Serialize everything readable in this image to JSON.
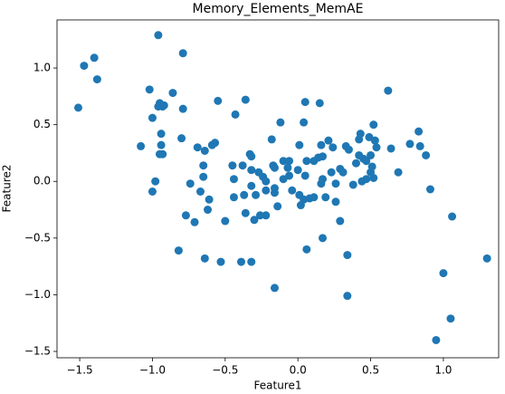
{
  "chart_data": {
    "type": "scatter",
    "title": "Memory_Elements_MemAE",
    "x_label": "Feature1",
    "y_label": "Feature2",
    "color": "#1f77b4",
    "x": [
      -1.51,
      -1.47,
      -1.4,
      -1.38,
      -0.96,
      -0.79,
      -1.08,
      -1.02,
      -1.0,
      -0.95,
      -0.93,
      -0.92,
      -0.96,
      -0.86,
      -0.79,
      -0.94,
      -0.94,
      -0.95,
      -0.93,
      -0.8,
      -0.98,
      -1.0,
      -0.74,
      -0.77,
      -0.71,
      -0.67,
      -0.69,
      -0.65,
      -0.65,
      -0.64,
      -0.61,
      -0.62,
      -0.59,
      -0.57,
      -0.55,
      -0.5,
      -0.82,
      -0.64,
      -0.53,
      -0.39,
      -0.32,
      -0.43,
      -0.36,
      -0.45,
      -0.44,
      -0.44,
      -0.38,
      -0.37,
      -0.36,
      -0.33,
      -0.32,
      -0.32,
      -0.32,
      -0.29,
      -0.3,
      -0.26,
      -0.24,
      -0.27,
      -0.22,
      -0.22,
      -0.22,
      -0.18,
      -0.17,
      -0.16,
      -0.16,
      -0.16,
      -0.14,
      -0.12,
      -0.1,
      -0.07,
      -0.1,
      -0.06,
      -0.06,
      -0.04,
      -0.16,
      0.01,
      0.0,
      0.01,
      0.02,
      0.04,
      0.05,
      0.04,
      0.06,
      0.06,
      0.05,
      0.08,
      0.11,
      0.11,
      0.15,
      0.14,
      0.16,
      0.17,
      0.17,
      0.16,
      0.19,
      0.17,
      0.21,
      0.23,
      0.24,
      0.26,
      0.26,
      0.29,
      0.29,
      0.31,
      0.33,
      0.35,
      0.34,
      0.34,
      0.38,
      0.4,
      0.42,
      0.43,
      0.42,
      0.44,
      0.45,
      0.47,
      0.47,
      0.49,
      0.5,
      0.5,
      0.51,
      0.52,
      0.53,
      0.54,
      0.52,
      0.62,
      0.64,
      0.69,
      0.77,
      0.83,
      0.84,
      0.88,
      0.91,
      1.06,
      1.0,
      1.05,
      0.95,
      1.3
    ],
    "y": [
      0.65,
      1.02,
      1.09,
      0.9,
      1.29,
      1.13,
      0.31,
      0.81,
      0.56,
      0.69,
      0.66,
      0.67,
      0.66,
      0.78,
      0.64,
      0.42,
      0.32,
      0.24,
      0.24,
      0.38,
      0.0,
      -0.09,
      -0.02,
      -0.3,
      -0.36,
      -0.09,
      0.3,
      0.14,
      0.04,
      0.27,
      -0.16,
      -0.25,
      0.32,
      0.34,
      0.71,
      -0.35,
      -0.61,
      -0.68,
      -0.71,
      -0.71,
      -0.71,
      0.59,
      0.72,
      0.14,
      0.02,
      -0.14,
      0.14,
      -0.12,
      -0.28,
      0.24,
      0.22,
      0.1,
      -0.04,
      -0.12,
      -0.34,
      -0.3,
      0.04,
      0.08,
      -0.08,
      -0.3,
      0.0,
      0.37,
      0.14,
      0.12,
      -0.1,
      -0.06,
      -0.22,
      0.52,
      0.18,
      0.12,
      0.02,
      0.18,
      0.05,
      -0.08,
      -0.94,
      0.32,
      0.1,
      -0.12,
      -0.21,
      -0.16,
      0.7,
      0.52,
      -0.6,
      0.18,
      0.05,
      -0.15,
      0.18,
      -0.14,
      0.69,
      0.21,
      0.32,
      0.22,
      0.02,
      -0.02,
      -0.14,
      -0.5,
      0.36,
      0.08,
      0.3,
      -0.02,
      -0.18,
      -0.35,
      0.11,
      0.08,
      0.31,
      0.28,
      -0.65,
      -1.01,
      -0.03,
      0.16,
      0.37,
      0.42,
      0.23,
      0.0,
      0.2,
      0.18,
      0.02,
      0.39,
      0.08,
      0.23,
      0.13,
      0.5,
      0.36,
      0.3,
      0.03,
      0.8,
      0.29,
      0.08,
      0.33,
      0.44,
      0.31,
      0.23,
      -0.07,
      -0.31,
      -0.81,
      -1.21,
      -1.4,
      -0.68
    ],
    "xlim": [
      -1.656,
      1.38
    ],
    "ylim": [
      -1.556,
      1.424
    ],
    "xticks": [
      {
        "value": -1.5,
        "label": "−1.5"
      },
      {
        "value": -1.0,
        "label": "−1.0"
      },
      {
        "value": -0.5,
        "label": "−0.5"
      },
      {
        "value": 0.0,
        "label": "0.0"
      },
      {
        "value": 0.5,
        "label": "0.5"
      },
      {
        "value": 1.0,
        "label": "1.0"
      }
    ],
    "yticks": [
      {
        "value": -1.5,
        "label": "−1.5"
      },
      {
        "value": -1.0,
        "label": "−1.0"
      },
      {
        "value": -0.5,
        "label": "−0.5"
      },
      {
        "value": 0.0,
        "label": "0.0"
      },
      {
        "value": 0.5,
        "label": "0.5"
      },
      {
        "value": 1.0,
        "label": "1.0"
      }
    ]
  }
}
